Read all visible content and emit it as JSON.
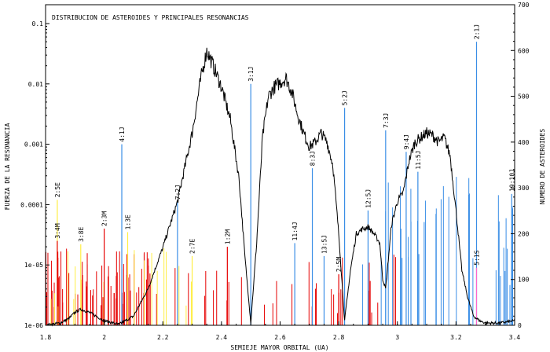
{
  "chart_data": {
    "type": "line",
    "title": "DISTRIBUCION DE ASTEROIDES Y PRINCIPALES RESONANCIAS",
    "xlabel": "SEMIEJE MAYOR ORBITAL (UA)",
    "ylabel_left": "FUERZA DE LA RESONANCIA",
    "ylabel_right": "NUMERO DE ASTEROIDES",
    "xlim": [
      1.8,
      3.4
    ],
    "ylim_left": [
      1e-06,
      0.1
    ],
    "ylim_right": [
      0,
      700
    ],
    "left_scale": "log",
    "x_ticks": [
      "1.8",
      "2",
      "2.2",
      "2.4",
      "2.6",
      "2.8",
      "3",
      "3.2",
      "3.4"
    ],
    "y_ticks_left": [
      "1e-06",
      "1e-05",
      "0.0001",
      "0.001",
      "0.01",
      "0.1"
    ],
    "y_ticks_right": [
      "0",
      "100",
      "200",
      "300",
      "400",
      "500",
      "600",
      "700"
    ],
    "colors": {
      "jupiter": "#3a8ee6",
      "mars": "#e60000",
      "earth": "#ffee44",
      "venus": "#ffee44",
      "saturn": "#ff66cc",
      "distribution": "#000000"
    },
    "labeled_resonances": [
      {
        "label": "2:5E",
        "x": 1.84,
        "strength": 0.00012,
        "body": "earth"
      },
      {
        "label": "3:4M",
        "x": 1.84,
        "strength": 2.5e-05,
        "body": "mars"
      },
      {
        "label": "3:8E",
        "x": 1.92,
        "strength": 2.2e-05,
        "body": "earth"
      },
      {
        "label": "2:3M",
        "x": 2.0,
        "strength": 4e-05,
        "body": "mars"
      },
      {
        "label": "4:1J",
        "x": 2.06,
        "strength": 0.001,
        "body": "jupiter"
      },
      {
        "label": "1:3E",
        "x": 2.08,
        "strength": 3.5e-05,
        "body": "earth"
      },
      {
        "label": "7:2J",
        "x": 2.25,
        "strength": 0.00011,
        "body": "jupiter"
      },
      {
        "label": "2:7E",
        "x": 2.3,
        "strength": 1.4e-05,
        "body": "earth"
      },
      {
        "label": "1:2M",
        "x": 2.42,
        "strength": 2e-05,
        "body": "mars"
      },
      {
        "label": "3:1J",
        "x": 2.5,
        "strength": 0.01,
        "body": "jupiter"
      },
      {
        "label": "11:4J",
        "x": 2.65,
        "strength": 2.3e-05,
        "body": "jupiter"
      },
      {
        "label": "8:3J",
        "x": 2.71,
        "strength": 0.0004,
        "body": "jupiter"
      },
      {
        "label": "13:5J",
        "x": 2.75,
        "strength": 1.4e-05,
        "body": "jupiter"
      },
      {
        "label": "2:5M",
        "x": 2.8,
        "strength": 7e-06,
        "body": "mars"
      },
      {
        "label": "5:2J",
        "x": 2.82,
        "strength": 0.004,
        "body": "jupiter"
      },
      {
        "label": "12:5J",
        "x": 2.9,
        "strength": 8e-05,
        "body": "jupiter"
      },
      {
        "label": "7:3J",
        "x": 2.96,
        "strength": 0.0017,
        "body": "jupiter"
      },
      {
        "label": "9:4J",
        "x": 3.03,
        "strength": 0.00075,
        "body": "jupiter"
      },
      {
        "label": "11:5J",
        "x": 3.07,
        "strength": 0.00035,
        "body": "jupiter"
      },
      {
        "label": "2:1J",
        "x": 3.27,
        "strength": 0.05,
        "body": "jupiter"
      },
      {
        "label": "5:1S",
        "x": 3.27,
        "strength": 9e-06,
        "body": "saturn"
      },
      {
        "label": "19:10J",
        "x": 3.39,
        "strength": 0.00015,
        "body": "jupiter"
      }
    ],
    "unlabeled_resonance_bands": [
      {
        "body": "mars",
        "x_range": [
          1.8,
          2.18
        ],
        "count": 70,
        "strength_range": [
          2e-06,
          2e-05
        ]
      },
      {
        "body": "mars",
        "x_range": [
          2.18,
          3.0
        ],
        "count": 30,
        "strength_range": [
          1.5e-06,
          1.5e-05
        ]
      },
      {
        "body": "earth",
        "x_range": [
          1.8,
          2.3
        ],
        "count": 18,
        "strength_range": [
          2e-06,
          2e-05
        ]
      },
      {
        "body": "jupiter",
        "x_range": [
          2.88,
          3.26
        ],
        "count": 26,
        "strength_range": [
          1e-05,
          0.0003
        ]
      },
      {
        "body": "jupiter",
        "x_range": [
          3.32,
          3.4
        ],
        "count": 14,
        "strength_range": [
          3e-06,
          0.0002
        ]
      }
    ],
    "distribution": {
      "series_axis": "right",
      "x": [
        1.8,
        1.85,
        1.88,
        1.9,
        1.92,
        1.95,
        2.0,
        2.05,
        2.1,
        2.15,
        2.2,
        2.25,
        2.3,
        2.33,
        2.35,
        2.37,
        2.4,
        2.43,
        2.46,
        2.48,
        2.5,
        2.52,
        2.54,
        2.56,
        2.58,
        2.6,
        2.62,
        2.64,
        2.66,
        2.68,
        2.7,
        2.72,
        2.74,
        2.76,
        2.78,
        2.8,
        2.82,
        2.84,
        2.86,
        2.88,
        2.9,
        2.92,
        2.94,
        2.95,
        2.96,
        2.98,
        3.0,
        3.02,
        3.04,
        3.06,
        3.08,
        3.1,
        3.12,
        3.14,
        3.16,
        3.18,
        3.2,
        3.22,
        3.24,
        3.26,
        3.28,
        3.3,
        3.35,
        3.4
      ],
      "y": [
        0,
        5,
        15,
        28,
        35,
        28,
        10,
        2,
        20,
        80,
        170,
        270,
        420,
        540,
        600,
        570,
        520,
        450,
        320,
        150,
        5,
        180,
        410,
        500,
        520,
        530,
        540,
        510,
        460,
        420,
        390,
        400,
        420,
        400,
        350,
        200,
        10,
        120,
        200,
        210,
        215,
        200,
        180,
        100,
        80,
        220,
        270,
        290,
        360,
        400,
        410,
        420,
        415,
        400,
        410,
        370,
        250,
        120,
        60,
        20,
        10,
        5,
        5,
        10
      ]
    }
  }
}
